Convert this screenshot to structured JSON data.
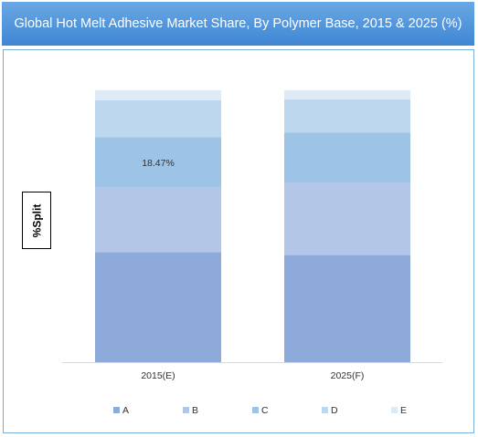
{
  "chart_data": {
    "type": "bar",
    "stacked": true,
    "title": "Global Hot Melt Adhesive Market Share, By Polymer Base, 2015 & 2025 (%)",
    "ylabel": "%Split",
    "xlabel": "",
    "ylim": [
      0,
      100
    ],
    "grid": false,
    "legend_position": "bottom",
    "categories": [
      "2015(E)",
      "2025(F)"
    ],
    "series": [
      {
        "name": "A",
        "values": [
          40.5,
          39.4
        ],
        "color": "#8eaadb"
      },
      {
        "name": "B",
        "values": [
          23.8,
          26.7
        ],
        "color": "#b4c6e7"
      },
      {
        "name": "C",
        "values": [
          18.47,
          18.4
        ],
        "color": "#9dc3e6"
      },
      {
        "name": "D",
        "values": [
          13.6,
          12.2
        ],
        "color": "#bdd7ee"
      },
      {
        "name": "E",
        "values": [
          3.63,
          3.3
        ],
        "color": "#deebf7"
      }
    ],
    "data_labels": [
      {
        "series": "C",
        "category": "2015(E)",
        "text": "18.47%"
      }
    ]
  }
}
